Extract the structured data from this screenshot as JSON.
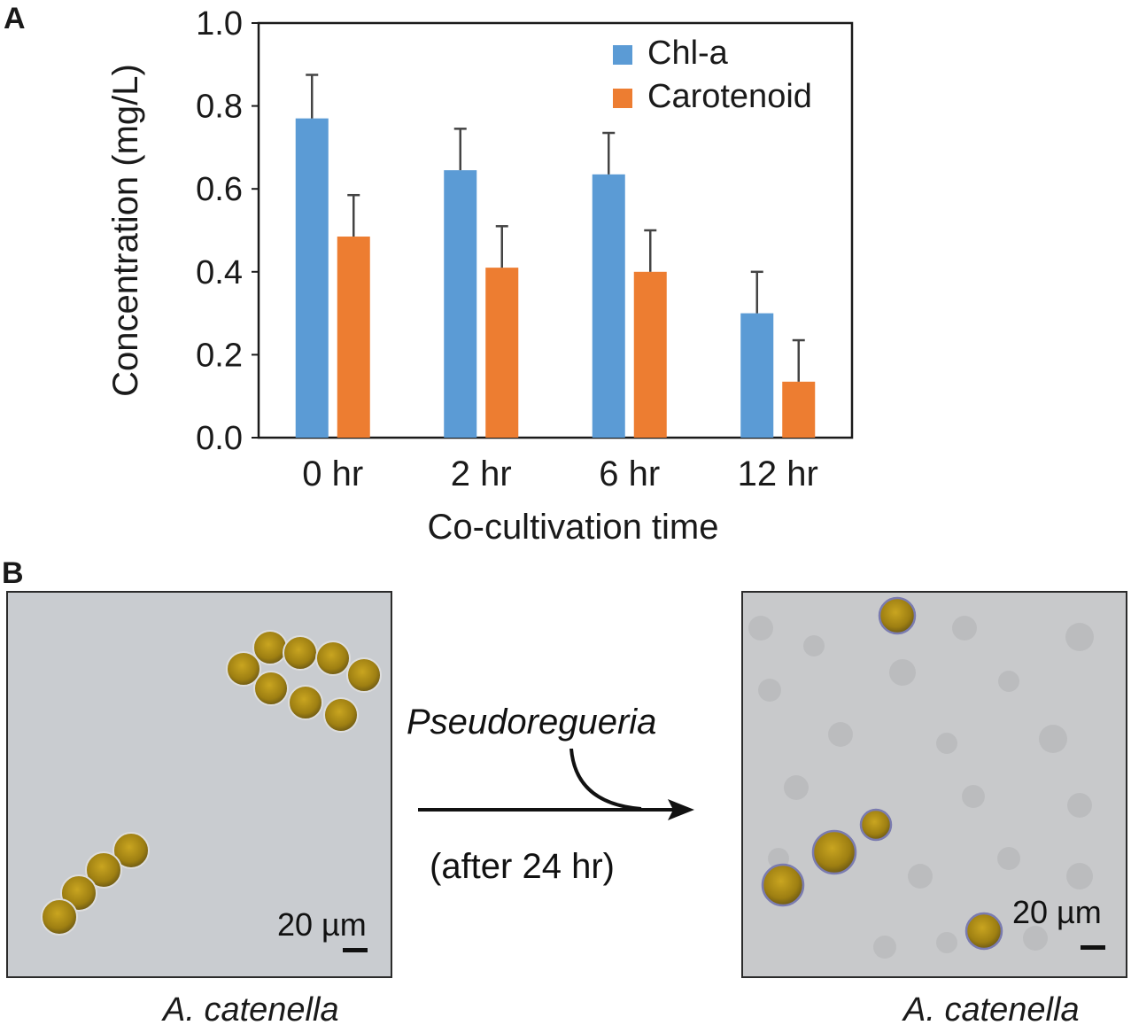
{
  "panel_a_letter": "A",
  "panel_b_letter": "B",
  "chart_data": {
    "type": "bar",
    "categories": [
      "0 hr",
      "2 hr",
      "6 hr",
      "12 hr"
    ],
    "series": [
      {
        "name": "Chl-a",
        "color": "#5b9bd5",
        "values": [
          0.77,
          0.645,
          0.635,
          0.3
        ],
        "errors": [
          0.105,
          0.1,
          0.1,
          0.1
        ]
      },
      {
        "name": "Carotenoid",
        "color": "#ed7d31",
        "values": [
          0.485,
          0.41,
          0.4,
          0.135
        ],
        "errors": [
          0.1,
          0.1,
          0.1,
          0.1
        ]
      }
    ],
    "xlabel": "Co-cultivation time",
    "ylabel": "Concentration (mg/L)",
    "ylim": [
      0,
      1.0
    ],
    "yticks": [
      "0.0",
      "0.2",
      "0.4",
      "0.6",
      "0.8",
      "1.0"
    ],
    "legend_position": "top-right",
    "grid": false
  },
  "panel_b": {
    "left_image": {
      "scale_label": "20 µm",
      "caption": "A. catenella"
    },
    "arrow": {
      "label": "Pseudoregueria",
      "sublabel": "(after 24 hr)"
    },
    "right_image": {
      "scale_label": "20 µm",
      "caption": "A. catenella"
    }
  }
}
